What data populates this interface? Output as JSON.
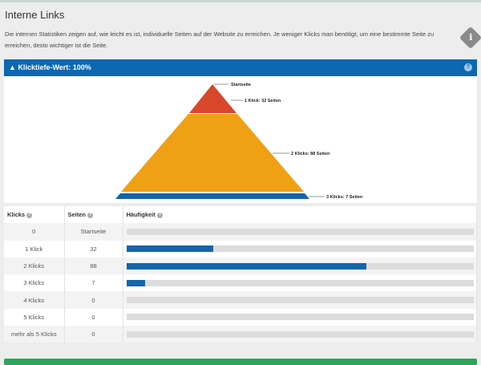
{
  "page": {
    "title": "Interne Links",
    "description": "Die internen Statistiken zeigen auf, wie leicht es ist, individuelle Seiten auf der Website zu erreichen. Je weniger Klicks man benötigt, um eine bestimmte Seite zu erreichen, desto wichtiger ist die Seite.",
    "info_icon": "info-icon"
  },
  "panel": {
    "title": "Klicktiefe-Wert: 100%",
    "icon": "sitemap-icon",
    "help_icon": "question-icon",
    "accent": "#0b68b1"
  },
  "pyramid": {
    "labels": [
      "Startseite",
      "1 Klick: 32 Seiten",
      "2 Klicks: 88 Seiten",
      "3 Klicks: 7 Seiten"
    ],
    "colors": [
      "#d9472b",
      "#f0a014",
      "#1565a8"
    ]
  },
  "table": {
    "headers": [
      "Klicks",
      "Seiten",
      "Häufigkeit"
    ],
    "rows": [
      {
        "klicks": "0",
        "seiten": "Startseite",
        "percent": 0
      },
      {
        "klicks": "1 Klick",
        "seiten": "32",
        "percent": 25
      },
      {
        "klicks": "2 Klicks",
        "seiten": "88",
        "percent": 69
      },
      {
        "klicks": "3 Klicks",
        "seiten": "7",
        "percent": 5.5
      },
      {
        "klicks": "4 Klicks",
        "seiten": "0",
        "percent": 0
      },
      {
        "klicks": "5 Klicks",
        "seiten": "0",
        "percent": 0
      },
      {
        "klicks": "mehr als 5 Klicks",
        "seiten": "0",
        "percent": 0
      }
    ]
  }
}
